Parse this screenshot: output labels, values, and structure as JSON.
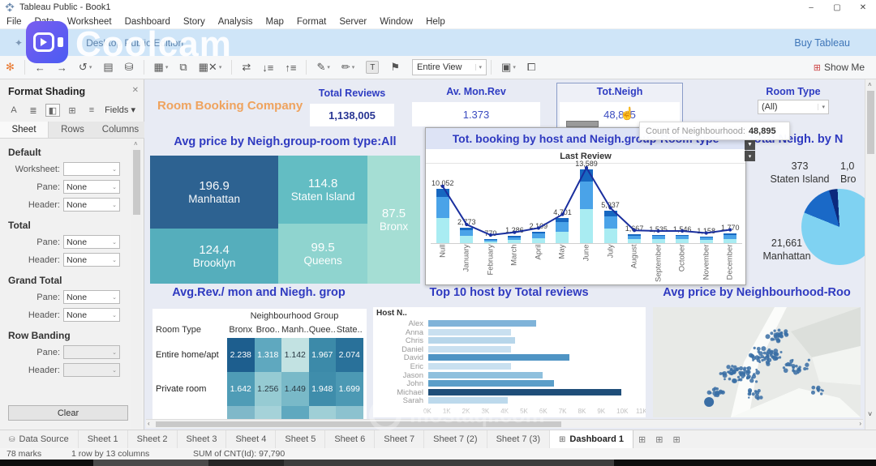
{
  "window": {
    "title": "Tableau Public - Book1",
    "minimize": "–",
    "maximize": "▢",
    "close": "✕"
  },
  "menu_items": [
    "File",
    "Data",
    "Worksheet",
    "Dashboard",
    "Story",
    "Analysis",
    "Map",
    "Format",
    "Server",
    "Window",
    "Help"
  ],
  "banner": {
    "edition_text": "Desktop Public Edition",
    "buy_link": "Buy Tableau"
  },
  "watermark": {
    "brand": "Coolcam",
    "site": "mostaql.com"
  },
  "toolbar": {
    "view_select": "Entire View",
    "show_me": "Show Me",
    "label_toggle": "T"
  },
  "format_panel": {
    "title": "Format Shading",
    "fields_label": "Fields ▾",
    "tabs": [
      "Sheet",
      "Rows",
      "Columns"
    ],
    "active_tab": "Sheet",
    "sections": [
      {
        "heading": "Default",
        "rows": [
          {
            "label": "Worksheet:",
            "value": "",
            "disabled": false
          },
          {
            "label": "Pane:",
            "value": "None",
            "disabled": false
          },
          {
            "label": "Header:",
            "value": "None",
            "disabled": false
          }
        ]
      },
      {
        "heading": "Total",
        "rows": [
          {
            "label": "Pane:",
            "value": "None",
            "disabled": false
          },
          {
            "label": "Header:",
            "value": "None",
            "disabled": false
          }
        ]
      },
      {
        "heading": "Grand Total",
        "rows": [
          {
            "label": "Pane:",
            "value": "None",
            "disabled": false
          },
          {
            "label": "Header:",
            "value": "None",
            "disabled": false
          }
        ]
      },
      {
        "heading": "Row Banding",
        "rows": [
          {
            "label": "Pane:",
            "value": "",
            "disabled": true
          },
          {
            "label": "Header:",
            "value": "",
            "disabled": true
          }
        ]
      }
    ],
    "clear_button": "Clear"
  },
  "dashboard": {
    "company": "Room Booking Company",
    "kpis": [
      {
        "label": "Total Reviews",
        "value": "1,138,005"
      },
      {
        "label": "Av. Mon.Rev",
        "value": "1.373"
      },
      {
        "label": "Tot.Neigh",
        "value": "48,895"
      }
    ],
    "room_type_filter": {
      "label": "Room Type",
      "value": "(All)"
    },
    "tooltip": {
      "label": "Count of Neighbourhood:",
      "value": "48,895"
    }
  },
  "chart_data": [
    {
      "id": "treemap",
      "type": "treemap",
      "title": "Avg price by Neigh.group-room type:All",
      "tiles": [
        {
          "name": "Manhattan",
          "value": "196.9",
          "color": "#2d6291"
        },
        {
          "name": "Brooklyn",
          "value": "124.4",
          "color": "#55aebc"
        },
        {
          "name": "Staten Island",
          "value": "114.8",
          "color": "#63bdc3"
        },
        {
          "name": "Queens",
          "value": "99.5",
          "color": "#8fd4cf"
        },
        {
          "name": "Bronx",
          "value": "87.5",
          "color": "#a5ded4"
        }
      ]
    },
    {
      "id": "monthly",
      "type": "bar+line",
      "title": "Tot. booking by host and Neigh.group-Room type",
      "subtitle": "Last Review",
      "categories": [
        "Null",
        "January",
        "February",
        "March",
        "April",
        "May",
        "June",
        "July",
        "August",
        "September",
        "October",
        "November",
        "December"
      ],
      "values": [
        10052,
        2773,
        770,
        1286,
        2109,
        4701,
        13589,
        5937,
        1667,
        1535,
        1546,
        1158,
        1770
      ],
      "labels": [
        "10,052",
        "2,773",
        "770",
        "1,286",
        "2,109",
        "4,701",
        "13,589",
        "5,937",
        "1,667",
        "1,535",
        "1,546",
        "1,158",
        "1,770"
      ],
      "segment_colors": [
        "#1667c0",
        "#4aa3e8",
        "#a9ecf2"
      ],
      "segment_fractions": [
        0.16,
        0.38,
        0.46
      ],
      "line_color": "#1a2f9e"
    },
    {
      "id": "pie",
      "type": "pie",
      "title": "Total Neigh. by N",
      "labels": [
        {
          "value": "373",
          "name": "Staten Island"
        },
        {
          "value": "1,0",
          "name": "Bro"
        },
        {
          "value": "21,661",
          "name": "Manhattan"
        }
      ],
      "slices": [
        {
          "color": "#1a69c7",
          "deg": 52
        },
        {
          "color": "#0b2a7e",
          "deg": 13
        },
        {
          "color": "#7fd2f2",
          "deg": 295
        }
      ],
      "start_deg": 292
    },
    {
      "id": "heatmap",
      "type": "heatmap",
      "title": "Avg.Rev./ mon and Niegh. grop",
      "col_group": "Neighbourhood Group",
      "row_group": "Room Type",
      "columns": [
        "Bronx",
        "Broo..",
        "Manh..",
        "Quee..",
        "State.."
      ],
      "rows": [
        {
          "label": "Entire home/apt",
          "values": [
            "2.238",
            "1.318",
            "1.142",
            "1.967",
            "2.074"
          ],
          "colors": [
            "#1d5e8e",
            "#5fa8bf",
            "#c2e2e2",
            "#3c8aa9",
            "#29719a"
          ],
          "text": [
            "#ffffff",
            "#ffffff",
            "#2a3a44",
            "#ffffff",
            "#ffffff"
          ]
        },
        {
          "label": "Private room",
          "values": [
            "1.642",
            "1.256",
            "1.449",
            "1.948",
            "1.699"
          ],
          "colors": [
            "#4f9cb6",
            "#96cbd3",
            "#79b9c8",
            "#3f8dab",
            "#4c99b4"
          ],
          "text": [
            "#ffffff",
            "#2a3a44",
            "#2a3a44",
            "#ffffff",
            "#ffffff"
          ]
        }
      ],
      "partial_row_colors": [
        "#7fb8c9",
        "#a5d2d9",
        "#5fa8bf",
        "#9fcfd6",
        "#8cc2cf"
      ]
    },
    {
      "id": "top10",
      "type": "bar",
      "title": "Top 10 host by Total reviews",
      "col_header": "Host N..",
      "categories": [
        "Alex",
        "Anna",
        "Chris",
        "Daniel",
        "David",
        "Eric",
        "Jason",
        "John",
        "Michael",
        "Sarah"
      ],
      "values": [
        5.6,
        4.3,
        4.5,
        4.3,
        7.3,
        4.3,
        5.9,
        6.5,
        10.0,
        4.1
      ],
      "colors": [
        "#7fb3d9",
        "#c9e0f0",
        "#b7d6ea",
        "#c9e0f0",
        "#4f94c4",
        "#c9e0f0",
        "#8fc0dd",
        "#5b9ec9",
        "#1f4e79",
        "#bcd9ec"
      ],
      "xmax": 11,
      "ticks": [
        "0K",
        "1K",
        "2K",
        "3K",
        "4K",
        "5K",
        "6K",
        "7K",
        "8K",
        "9K",
        "10K",
        "11K"
      ]
    },
    {
      "id": "map",
      "type": "map-scatter",
      "title": "Avg price by Neighbourhood-Roo",
      "dot_color": "#3a6ea5",
      "clusters": [
        {
          "x": 0.42,
          "y": 0.6,
          "n": 60,
          "spread": 0.1
        },
        {
          "x": 0.55,
          "y": 0.44,
          "n": 45,
          "spread": 0.09
        },
        {
          "x": 0.6,
          "y": 0.26,
          "n": 25,
          "spread": 0.06
        },
        {
          "x": 0.7,
          "y": 0.55,
          "n": 22,
          "spread": 0.08
        },
        {
          "x": 0.3,
          "y": 0.78,
          "n": 16,
          "spread": 0.05
        },
        {
          "x": 0.5,
          "y": 0.8,
          "n": 14,
          "spread": 0.05
        },
        {
          "x": 0.8,
          "y": 0.76,
          "n": 10,
          "spread": 0.04
        }
      ]
    }
  ],
  "sheet_tabs": {
    "data_source": "Data Source",
    "sheets": [
      "Sheet 1",
      "Sheet 2",
      "Sheet 3",
      "Sheet 4",
      "Sheet 5",
      "Sheet 6",
      "Sheet 7",
      "Sheet 7 (2)",
      "Sheet 7 (3)"
    ],
    "active": "Dashboard 1"
  },
  "status_bar": {
    "marks": "78 marks",
    "rows": "1 row by 13 columns",
    "sum": "SUM of CNT(Id): 97,790"
  }
}
